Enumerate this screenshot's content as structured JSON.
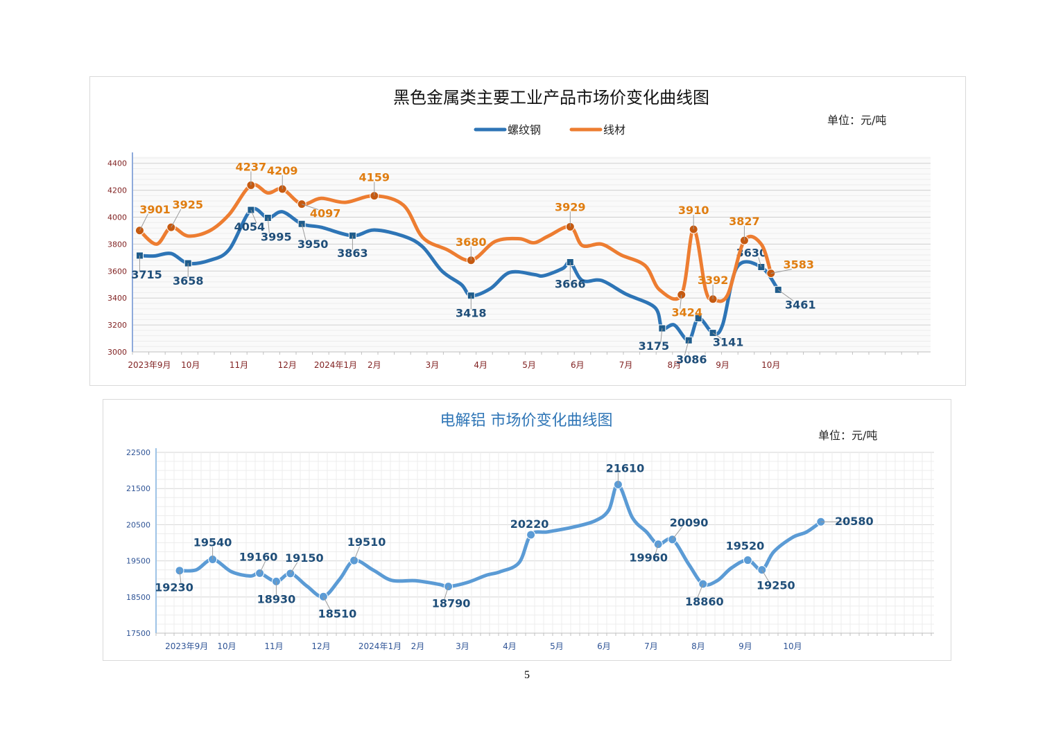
{
  "page": {
    "page_number": "5"
  },
  "chart_data": [
    {
      "type": "line",
      "title": "黑色金属类主要工业产品市场价变化曲线图",
      "unit_label": "单位：元/吨",
      "legend_placement": "top-center",
      "grid": true,
      "ylim": [
        3000,
        4450
      ],
      "y_ticks": [
        "3000",
        "3200",
        "3400",
        "3600",
        "3800",
        "4000",
        "4200",
        "4400"
      ],
      "x_domain": [
        0,
        16.5
      ],
      "x_ticks": [
        {
          "x": 0.35,
          "label": "2023年9月"
        },
        {
          "x": 1.2,
          "label": "10月"
        },
        {
          "x": 2.2,
          "label": "11月"
        },
        {
          "x": 3.2,
          "label": "12月"
        },
        {
          "x": 4.2,
          "label": "2024年1月"
        },
        {
          "x": 5.0,
          "label": "2月"
        },
        {
          "x": 6.2,
          "label": "3月"
        },
        {
          "x": 7.2,
          "label": "4月"
        },
        {
          "x": 8.2,
          "label": "5月"
        },
        {
          "x": 9.2,
          "label": "6月"
        },
        {
          "x": 10.2,
          "label": "7月"
        },
        {
          "x": 11.2,
          "label": "8月"
        },
        {
          "x": 12.2,
          "label": "9月"
        },
        {
          "x": 13.2,
          "label": "10月"
        }
      ],
      "series": [
        {
          "name": "螺纹钢",
          "color": "#2e75b6",
          "marker": "square",
          "label_color": "#1f4e79",
          "curve": [
            [
              0.15,
              3715
            ],
            [
              0.45,
              3712
            ],
            [
              0.8,
              3730
            ],
            [
              1.15,
              3658
            ],
            [
              1.6,
              3680
            ],
            [
              2.0,
              3760
            ],
            [
              2.45,
              4054
            ],
            [
              2.8,
              3995
            ],
            [
              3.1,
              4040
            ],
            [
              3.5,
              3950
            ],
            [
              3.9,
              3925
            ],
            [
              4.55,
              3863
            ],
            [
              5.0,
              3905
            ],
            [
              5.6,
              3860
            ],
            [
              6.0,
              3780
            ],
            [
              6.4,
              3600
            ],
            [
              6.8,
              3500
            ],
            [
              7.0,
              3418
            ],
            [
              7.4,
              3470
            ],
            [
              7.8,
              3590
            ],
            [
              8.3,
              3575
            ],
            [
              8.5,
              3565
            ],
            [
              8.9,
              3620
            ],
            [
              9.05,
              3666
            ],
            [
              9.3,
              3530
            ],
            [
              9.7,
              3530
            ],
            [
              10.2,
              3430
            ],
            [
              10.8,
              3330
            ],
            [
              10.95,
              3175
            ],
            [
              11.2,
              3200
            ],
            [
              11.5,
              3086
            ],
            [
              11.7,
              3250
            ],
            [
              12.0,
              3141
            ],
            [
              12.2,
              3200
            ],
            [
              12.5,
              3630
            ],
            [
              13.0,
              3630
            ],
            [
              13.35,
              3461
            ]
          ],
          "points": [
            {
              "x": 0.15,
              "y": 3715,
              "label": "3715"
            },
            {
              "x": 1.15,
              "y": 3658,
              "label": "3658"
            },
            {
              "x": 2.45,
              "y": 4054,
              "label": "4054"
            },
            {
              "x": 2.8,
              "y": 3995,
              "label": "3995"
            },
            {
              "x": 3.5,
              "y": 3950,
              "label": "3950"
            },
            {
              "x": 4.55,
              "y": 3863,
              "label": "3863"
            },
            {
              "x": 7.0,
              "y": 3418,
              "label": "3418"
            },
            {
              "x": 9.05,
              "y": 3666,
              "label": "3666"
            },
            {
              "x": 10.95,
              "y": 3175,
              "label": "3175"
            },
            {
              "x": 11.5,
              "y": 3086,
              "label": "3086"
            },
            {
              "x": 11.7,
              "y": 3250,
              "label": ""
            },
            {
              "x": 12.0,
              "y": 3141,
              "label": "3141"
            },
            {
              "x": 13.0,
              "y": 3630,
              "label": "3630"
            },
            {
              "x": 13.35,
              "y": 3461,
              "label": "3461"
            }
          ]
        },
        {
          "name": "线材",
          "color": "#ed7d31",
          "marker": "circle",
          "label_color": "#e07d10",
          "curve": [
            [
              0.15,
              3901
            ],
            [
              0.5,
              3800
            ],
            [
              0.8,
              3925
            ],
            [
              1.15,
              3860
            ],
            [
              1.6,
              3900
            ],
            [
              2.0,
              4020
            ],
            [
              2.45,
              4237
            ],
            [
              2.8,
              4180
            ],
            [
              3.1,
              4209
            ],
            [
              3.5,
              4097
            ],
            [
              3.9,
              4140
            ],
            [
              4.4,
              4110
            ],
            [
              5.0,
              4159
            ],
            [
              5.6,
              4090
            ],
            [
              6.0,
              3850
            ],
            [
              6.5,
              3760
            ],
            [
              7.0,
              3680
            ],
            [
              7.5,
              3820
            ],
            [
              8.0,
              3840
            ],
            [
              8.3,
              3810
            ],
            [
              8.6,
              3860
            ],
            [
              9.05,
              3929
            ],
            [
              9.3,
              3790
            ],
            [
              9.7,
              3800
            ],
            [
              10.1,
              3720
            ],
            [
              10.6,
              3640
            ],
            [
              10.9,
              3460
            ],
            [
              11.35,
              3424
            ],
            [
              11.6,
              3910
            ],
            [
              11.85,
              3460
            ],
            [
              12.0,
              3392
            ],
            [
              12.3,
              3420
            ],
            [
              12.65,
              3827
            ],
            [
              13.0,
              3800
            ],
            [
              13.2,
              3583
            ]
          ],
          "points": [
            {
              "x": 0.15,
              "y": 3901,
              "label": "3901"
            },
            {
              "x": 0.8,
              "y": 3925,
              "label": "3925"
            },
            {
              "x": 2.45,
              "y": 4237,
              "label": "4237"
            },
            {
              "x": 3.1,
              "y": 4209,
              "label": "4209"
            },
            {
              "x": 3.5,
              "y": 4097,
              "label": "4097"
            },
            {
              "x": 5.0,
              "y": 4159,
              "label": "4159"
            },
            {
              "x": 7.0,
              "y": 3680,
              "label": "3680"
            },
            {
              "x": 9.05,
              "y": 3929,
              "label": "3929"
            },
            {
              "x": 11.35,
              "y": 3424,
              "label": "3424"
            },
            {
              "x": 11.6,
              "y": 3910,
              "label": "3910"
            },
            {
              "x": 12.0,
              "y": 3392,
              "label": "3392"
            },
            {
              "x": 12.65,
              "y": 3827,
              "label": "3827"
            },
            {
              "x": 13.2,
              "y": 3583,
              "label": "3583"
            }
          ]
        }
      ]
    },
    {
      "type": "line",
      "title": "电解铝  市场价变化曲线图",
      "unit_label": "单位：元/吨",
      "grid": true,
      "ylim": [
        17500,
        22500
      ],
      "y_ticks": [
        "17500",
        "18500",
        "19500",
        "20500",
        "21500",
        "22500"
      ],
      "x_domain": [
        0,
        16.5
      ],
      "x_ticks": [
        {
          "x": 0.65,
          "label": "2023年9月"
        },
        {
          "x": 1.5,
          "label": "10月"
        },
        {
          "x": 2.5,
          "label": "11月"
        },
        {
          "x": 3.5,
          "label": "12月"
        },
        {
          "x": 4.75,
          "label": "2024年1月"
        },
        {
          "x": 5.55,
          "label": "2月"
        },
        {
          "x": 6.5,
          "label": "3月"
        },
        {
          "x": 7.5,
          "label": "4月"
        },
        {
          "x": 8.5,
          "label": "5月"
        },
        {
          "x": 9.5,
          "label": "6月"
        },
        {
          "x": 10.5,
          "label": "7月"
        },
        {
          "x": 11.5,
          "label": "8月"
        },
        {
          "x": 12.5,
          "label": "9月"
        },
        {
          "x": 13.5,
          "label": "10月"
        }
      ],
      "series": [
        {
          "name": "",
          "color": "#5b9bd5",
          "marker": "circle",
          "label_color": "#1f4e79",
          "curve": [
            [
              0.5,
              19230
            ],
            [
              0.85,
              19250
            ],
            [
              1.2,
              19540
            ],
            [
              1.6,
              19200
            ],
            [
              2.0,
              19080
            ],
            [
              2.2,
              19160
            ],
            [
              2.55,
              18930
            ],
            [
              2.85,
              19150
            ],
            [
              3.2,
              18800
            ],
            [
              3.55,
              18510
            ],
            [
              3.9,
              19000
            ],
            [
              4.2,
              19510
            ],
            [
              4.6,
              19250
            ],
            [
              5.0,
              18960
            ],
            [
              5.5,
              18950
            ],
            [
              6.0,
              18850
            ],
            [
              6.2,
              18790
            ],
            [
              6.6,
              18900
            ],
            [
              7.0,
              19100
            ],
            [
              7.3,
              19200
            ],
            [
              7.7,
              19450
            ],
            [
              7.95,
              20220
            ],
            [
              8.3,
              20300
            ],
            [
              8.8,
              20420
            ],
            [
              9.3,
              20600
            ],
            [
              9.6,
              20900
            ],
            [
              9.8,
              21610
            ],
            [
              10.1,
              20700
            ],
            [
              10.4,
              20300
            ],
            [
              10.65,
              19960
            ],
            [
              10.95,
              20090
            ],
            [
              11.3,
              19400
            ],
            [
              11.6,
              18860
            ],
            [
              11.9,
              18950
            ],
            [
              12.2,
              19300
            ],
            [
              12.55,
              19520
            ],
            [
              12.85,
              19250
            ],
            [
              13.1,
              19750
            ],
            [
              13.5,
              20150
            ],
            [
              13.8,
              20300
            ],
            [
              14.1,
              20580
            ]
          ],
          "points": [
            {
              "x": 0.5,
              "y": 19230,
              "label": "19230"
            },
            {
              "x": 1.2,
              "y": 19540,
              "label": "19540"
            },
            {
              "x": 2.2,
              "y": 19160,
              "label": "19160"
            },
            {
              "x": 2.55,
              "y": 18930,
              "label": "18930"
            },
            {
              "x": 2.85,
              "y": 19150,
              "label": "19150"
            },
            {
              "x": 3.55,
              "y": 18510,
              "label": "18510"
            },
            {
              "x": 4.2,
              "y": 19510,
              "label": "19510"
            },
            {
              "x": 6.2,
              "y": 18790,
              "label": "18790"
            },
            {
              "x": 7.95,
              "y": 20220,
              "label": "20220"
            },
            {
              "x": 9.8,
              "y": 21610,
              "label": "21610"
            },
            {
              "x": 10.65,
              "y": 19960,
              "label": "19960"
            },
            {
              "x": 10.95,
              "y": 20090,
              "label": "20090"
            },
            {
              "x": 11.6,
              "y": 18860,
              "label": "18860"
            },
            {
              "x": 12.55,
              "y": 19520,
              "label": "19520"
            },
            {
              "x": 12.85,
              "y": 19250,
              "label": "19250"
            },
            {
              "x": 14.1,
              "y": 20580,
              "label": "20580"
            }
          ]
        }
      ]
    }
  ]
}
